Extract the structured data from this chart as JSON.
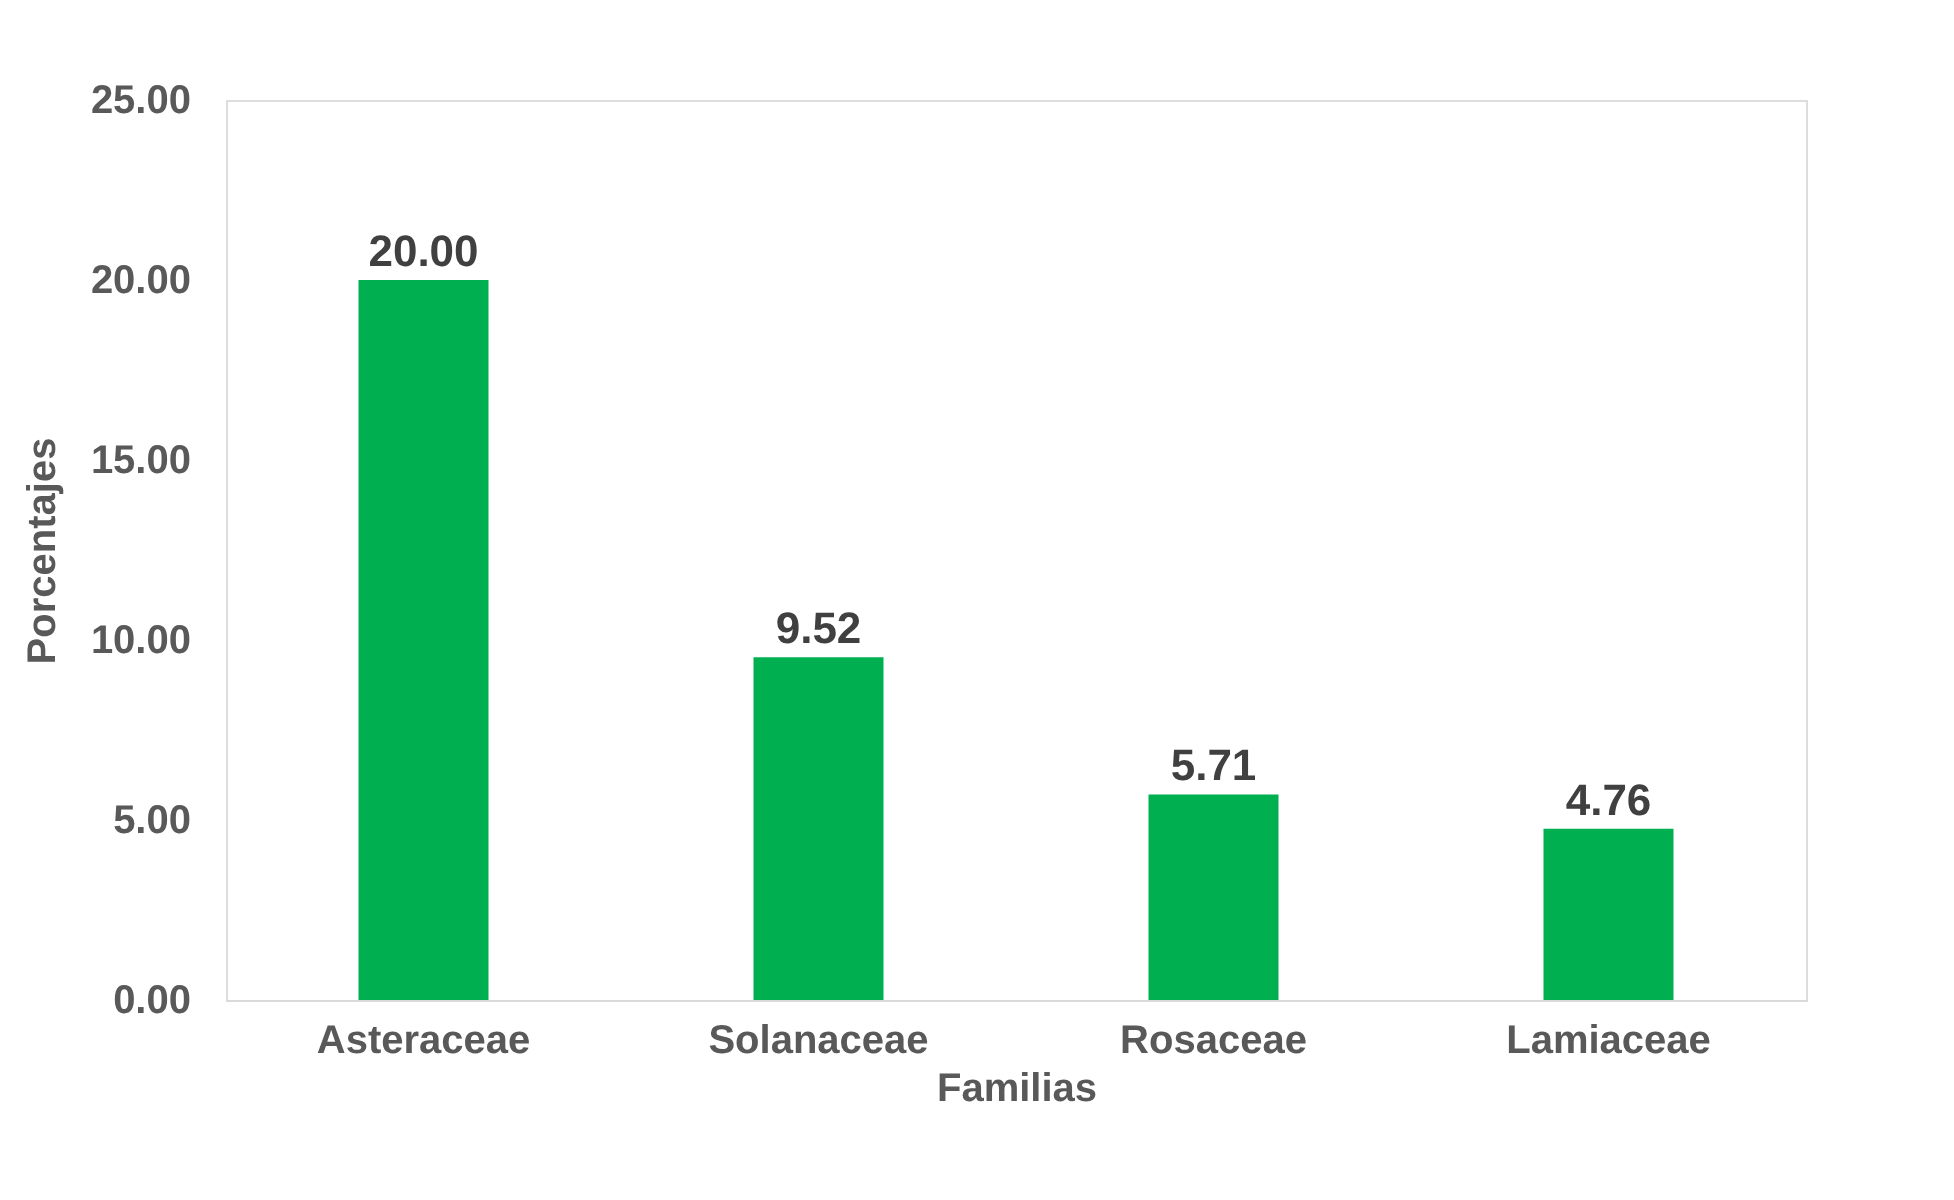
{
  "chart_data": {
    "type": "bar",
    "xlabel": "Familias",
    "ylabel": "Porcentajes",
    "categories": [
      "Asteraceae",
      "Solanaceae",
      "Rosaceae",
      "Lamiaceae"
    ],
    "values": [
      20,
      9.52,
      5.71,
      4.76
    ],
    "value_labels": [
      "20.00",
      "9.52",
      "5.71",
      "4.76"
    ],
    "color": "#00b050",
    "ylim": [
      0,
      25
    ],
    "yticks": [
      {
        "value": 0,
        "label": "0.00"
      },
      {
        "value": 5,
        "label": "5.00"
      },
      {
        "value": 10,
        "label": "10.00"
      },
      {
        "value": 15,
        "label": "15.00"
      },
      {
        "value": 20,
        "label": "20.00"
      },
      {
        "value": 25,
        "label": "25.00"
      }
    ],
    "grid": false
  }
}
